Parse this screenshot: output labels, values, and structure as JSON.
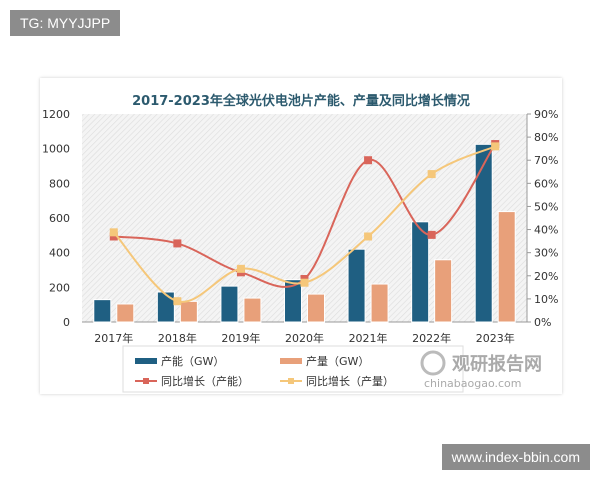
{
  "watermarks": {
    "top_left": "TG: MYYJJPP",
    "bottom_right": "www.index-bbin.com"
  },
  "logo": {
    "name": "观研报告网",
    "url_text": "chinabaogao.com"
  },
  "chart_data": {
    "type": "bar+line",
    "title": "2017-2023年全球光伏电池片产能、产量及同比增长情况",
    "categories": [
      "2017年",
      "2018年",
      "2019年",
      "2020年",
      "2021年",
      "2022年",
      "2023年"
    ],
    "y_left": {
      "range": [
        0,
        1200
      ],
      "ticks": [
        "0",
        "200",
        "400",
        "600",
        "800",
        "1000",
        "1200"
      ]
    },
    "y_right": {
      "range": [
        0,
        90
      ],
      "ticks": [
        "0%",
        "10%",
        "20%",
        "30%",
        "40%",
        "50%",
        "60%",
        "70%",
        "80%",
        "90%"
      ]
    },
    "grid": false,
    "legend_placement": "bottom",
    "series": [
      {
        "name": "产能（GW）",
        "kind": "bar",
        "axis": "left",
        "color": "#1f5f82",
        "values": [
          129,
          173,
          207,
          244,
          420,
          578,
          1025
        ]
      },
      {
        "name": "产量（GW）",
        "kind": "bar",
        "axis": "left",
        "color": "#e8a07a",
        "values": [
          104,
          119,
          138,
          161,
          219,
          359,
          637
        ]
      },
      {
        "name": "同比增长（产能）",
        "kind": "line",
        "axis": "right",
        "color": "#d9655a",
        "values": [
          37,
          34,
          21.5,
          18.6,
          70,
          37.7,
          77
        ]
      },
      {
        "name": "同比增长（产量）",
        "kind": "line",
        "axis": "right",
        "color": "#f5c77a",
        "values": [
          38.8,
          9,
          23,
          17,
          37,
          64,
          76
        ]
      }
    ]
  }
}
